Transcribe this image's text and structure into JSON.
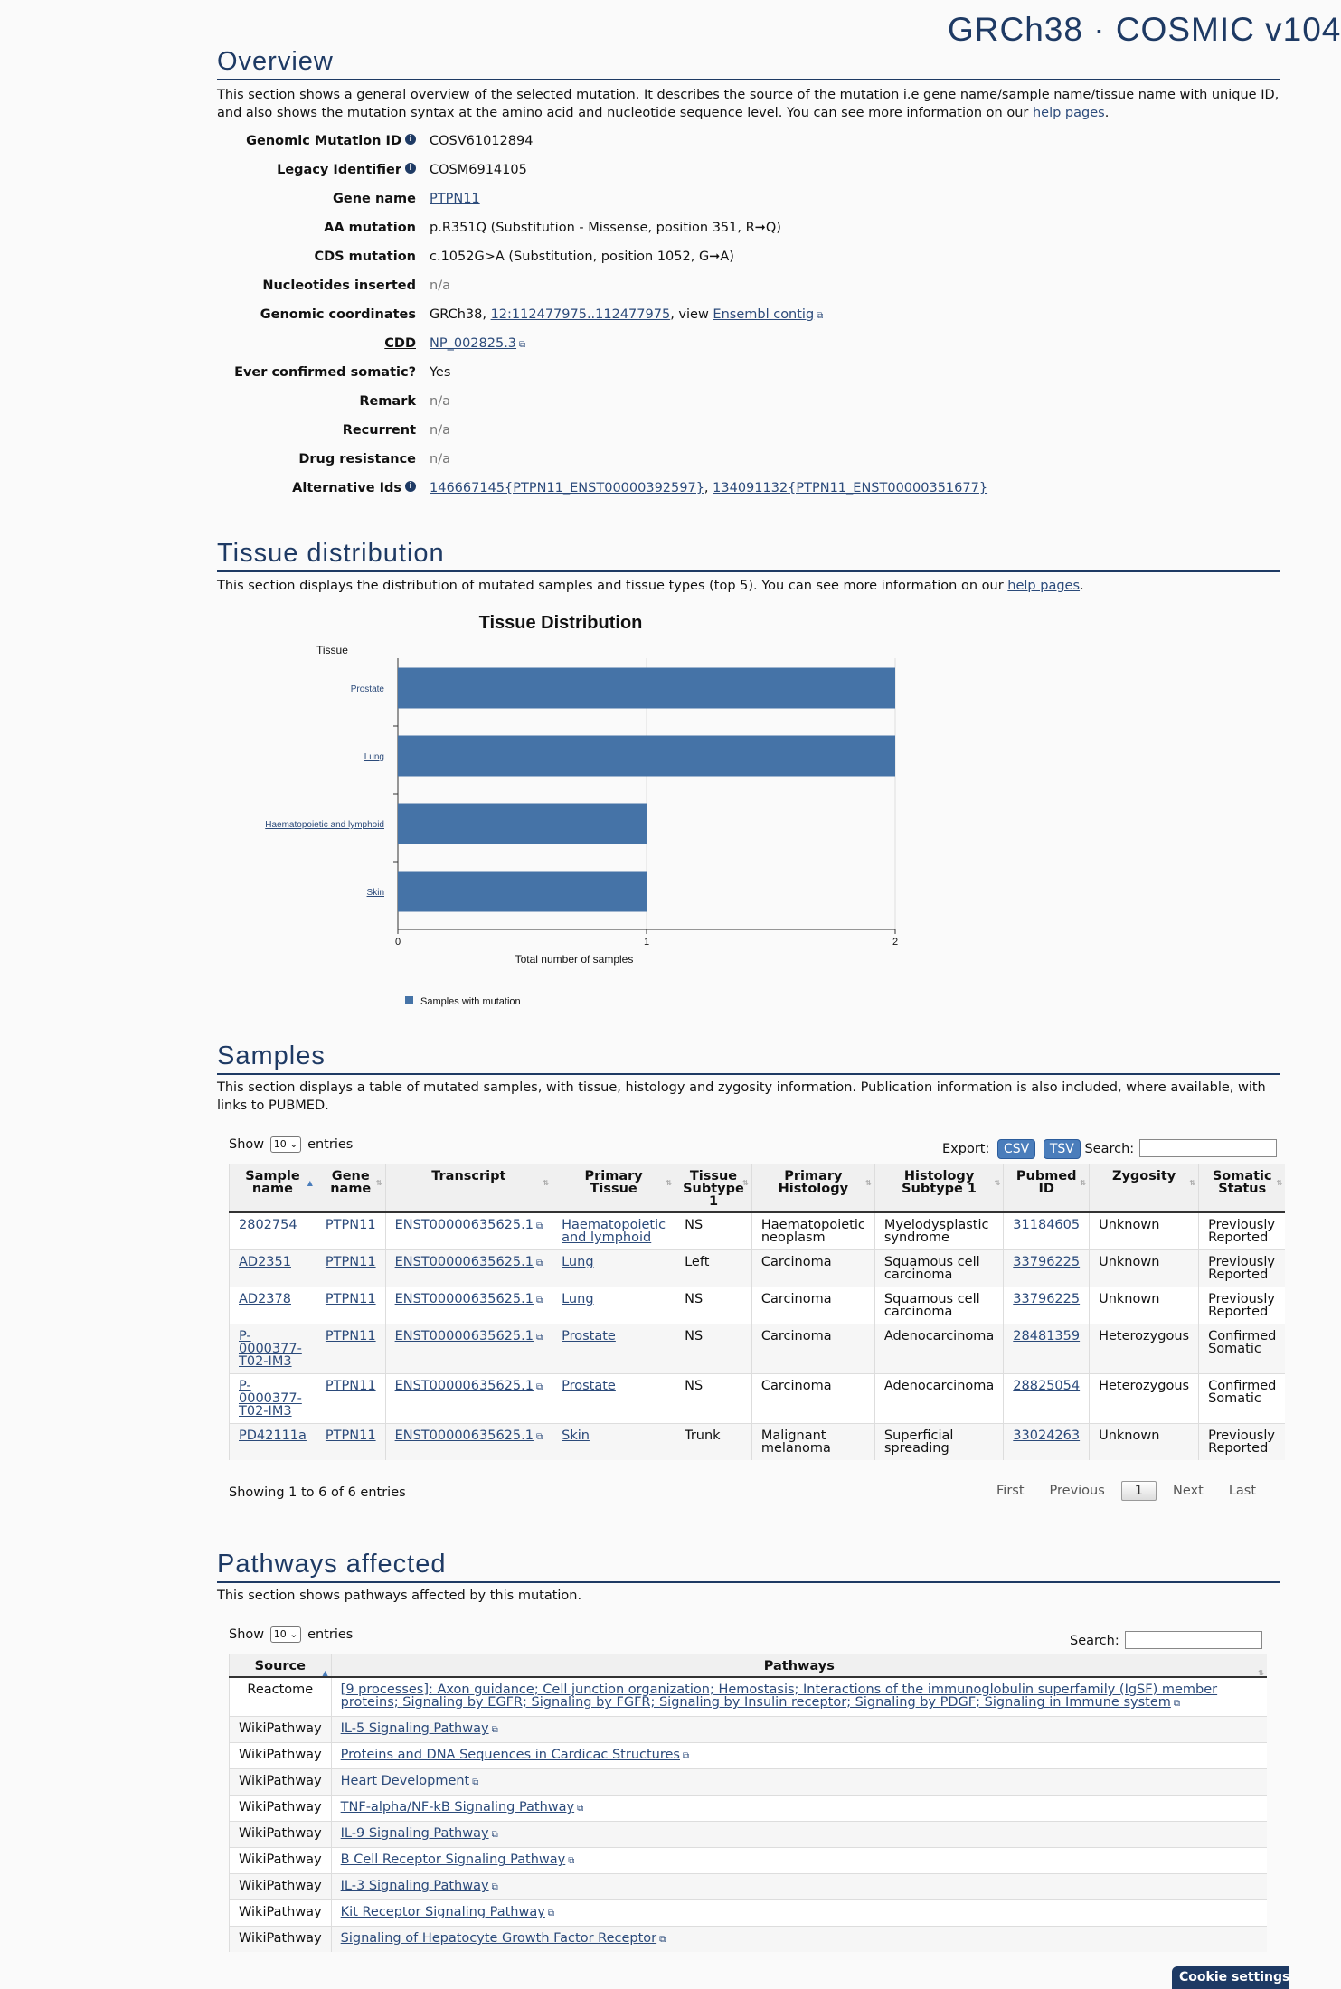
{
  "build_title": "GRCh38 · COSMIC v104",
  "overview": {
    "heading": "Overview",
    "description_pre": "This section shows a general overview of the selected mutation. It describes the source of the mutation i.e gene name/sample name/tissue name with unique ID, and also shows the mutation syntax at the amino acid and nucleotide sequence level. You can see more information on our ",
    "help_link": "help pages",
    "description_post": ".",
    "genomic_mutation_id_label": "Genomic Mutation ID",
    "genomic_mutation_id": "COSV61012894",
    "legacy_identifier_label": "Legacy Identifier",
    "legacy_identifier": "COSM6914105",
    "gene_name_label": "Gene name",
    "gene_name": "PTPN11",
    "aa_mutation_label": "AA mutation",
    "aa_mutation": "p.R351Q (Substitution - Missense, position 351, R➞Q)",
    "cds_mutation_label": "CDS mutation",
    "cds_mutation": "c.1052G>A (Substitution, position 1052, G➞A)",
    "nucleotides_inserted_label": "Nucleotides inserted",
    "nucleotides_inserted": "n/a",
    "genomic_coordinates_label": "Genomic coordinates",
    "genomic_coordinates_prefix": "GRCh38, ",
    "genomic_coordinates_link": "12:112477975..112477975",
    "genomic_coordinates_mid": ", view ",
    "ensembl_link": "Ensembl contig",
    "cdd_label": "CDD",
    "cdd_value": "NP_002825.3",
    "ever_confirmed_somatic_label": "Ever confirmed somatic?",
    "ever_confirmed_somatic": "Yes",
    "remark_label": "Remark",
    "remark": "n/a",
    "recurrent_label": "Recurrent",
    "recurrent": "n/a",
    "drug_resistance_label": "Drug resistance",
    "drug_resistance": "n/a",
    "alternative_ids_label": "Alternative Ids",
    "alternative_id_1": "146667145{PTPN11_ENST00000392597}",
    "alternative_ids_sep": ", ",
    "alternative_id_2": "134091132{PTPN11_ENST00000351677}"
  },
  "tissue": {
    "heading": "Tissue distribution",
    "description_pre": "This section displays the distribution of mutated samples and tissue types (top 5). You can see more information on our ",
    "help_link": "help pages",
    "description_post": "."
  },
  "chart_data": {
    "type": "bar",
    "orientation": "horizontal",
    "title": "Tissue Distribution",
    "ylabel": "Tissue",
    "xlabel": "Total number of samples",
    "categories": [
      "Prostate",
      "Lung",
      "Haematopoietic and lymphoid",
      "Skin"
    ],
    "series": [
      {
        "name": "Samples with mutation",
        "values": [
          2,
          2,
          1,
          1
        ]
      }
    ],
    "xlim": [
      0,
      2
    ],
    "xticks": [
      "0",
      "1",
      "2"
    ],
    "grid": true,
    "legend": "bottom-left",
    "bar_color": "#4573a7"
  },
  "samples": {
    "heading": "Samples",
    "description": "This section displays a table of mutated samples, with tissue, histology and zygosity information. Publication information is also included, where available, with links to PUBMED.",
    "show_label": "Show",
    "page_size": "10",
    "entries_label": "entries",
    "export_label": "Export:",
    "csv_button": "CSV",
    "tsv_button": "TSV",
    "search_label": "Search:",
    "columns": [
      "Sample name",
      "Gene name",
      "Transcript",
      "Primary Tissue",
      "Tissue Subtype 1",
      "Primary Histology",
      "Histology Subtype 1",
      "Pubmed ID",
      "Zygosity",
      "Somatic Status"
    ],
    "rows": [
      [
        "2802754",
        "PTPN11",
        "ENST00000635625.1",
        "Haematopoietic and lymphoid",
        "NS",
        "Haematopoietic neoplasm",
        "Myelodysplastic syndrome",
        "31184605",
        "Unknown",
        "Previously Reported"
      ],
      [
        "AD2351",
        "PTPN11",
        "ENST00000635625.1",
        "Lung",
        "Left",
        "Carcinoma",
        "Squamous cell carcinoma",
        "33796225",
        "Unknown",
        "Previously Reported"
      ],
      [
        "AD2378",
        "PTPN11",
        "ENST00000635625.1",
        "Lung",
        "NS",
        "Carcinoma",
        "Squamous cell carcinoma",
        "33796225",
        "Unknown",
        "Previously Reported"
      ],
      [
        "P-0000377-T02-IM3",
        "PTPN11",
        "ENST00000635625.1",
        "Prostate",
        "NS",
        "Carcinoma",
        "Adenocarcinoma",
        "28481359",
        "Heterozygous",
        "Confirmed Somatic"
      ],
      [
        "P-0000377-T02-IM3",
        "PTPN11",
        "ENST00000635625.1",
        "Prostate",
        "NS",
        "Carcinoma",
        "Adenocarcinoma",
        "28825054",
        "Heterozygous",
        "Confirmed Somatic"
      ],
      [
        "PD42111a",
        "PTPN11",
        "ENST00000635625.1",
        "Skin",
        "Trunk",
        "Malignant melanoma",
        "Superficial spreading",
        "33024263",
        "Unknown",
        "Previously Reported"
      ]
    ],
    "info": "Showing 1 to 6 of 6 entries",
    "paging": {
      "first": "First",
      "previous": "Previous",
      "current": "1",
      "next": "Next",
      "last": "Last"
    }
  },
  "pathways": {
    "heading": "Pathways affected",
    "description": "This section shows pathways affected by this mutation.",
    "show_label": "Show",
    "page_size": "10",
    "entries_label": "entries",
    "search_label": "Search:",
    "columns": [
      "Source",
      "Pathways"
    ],
    "rows": [
      [
        "Reactome",
        "[9 processes]: Axon guidance; Cell junction organization; Hemostasis; Interactions of the immunoglobulin superfamily (IgSF) member proteins; Signaling by EGFR; Signaling by FGFR; Signaling by Insulin receptor; Signaling by PDGF; Signaling in Immune system"
      ],
      [
        "WikiPathway",
        "IL-5 Signaling Pathway"
      ],
      [
        "WikiPathway",
        "Proteins and DNA Sequences in Cardicac Structures"
      ],
      [
        "WikiPathway",
        "Heart Development"
      ],
      [
        "WikiPathway",
        "TNF-alpha/NF-kB Signaling Pathway"
      ],
      [
        "WikiPathway",
        "IL-9 Signaling Pathway"
      ],
      [
        "WikiPathway",
        "B Cell Receptor Signaling Pathway"
      ],
      [
        "WikiPathway",
        "IL-3 Signaling Pathway"
      ],
      [
        "WikiPathway",
        "Kit Receptor Signaling Pathway"
      ],
      [
        "WikiPathway",
        "Signaling of Hepatocyte Growth Factor Receptor"
      ]
    ]
  },
  "cookie_button": "Cookie settings",
  "icons": {
    "info": "info-icon",
    "external_link": "external-link-icon",
    "sort": "sort-icon"
  }
}
